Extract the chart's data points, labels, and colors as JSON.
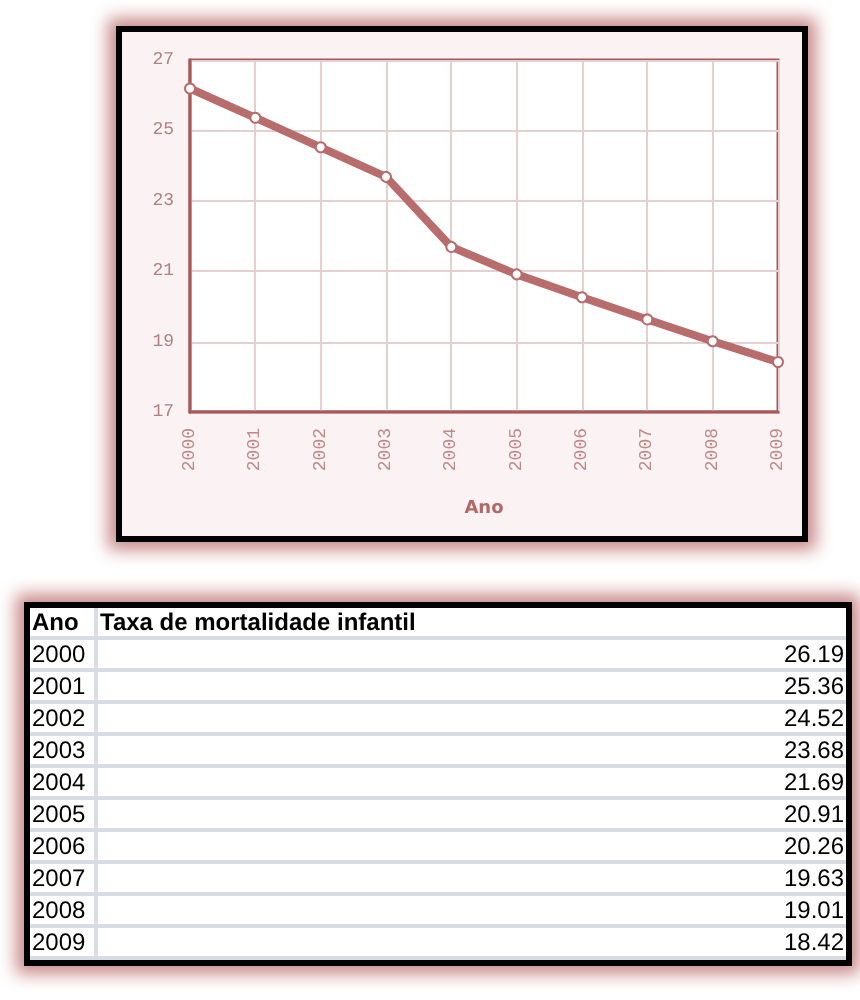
{
  "chart_data": {
    "type": "line",
    "xlabel": "Ano",
    "categories": [
      "2000",
      "2001",
      "2002",
      "2003",
      "2004",
      "2005",
      "2006",
      "2007",
      "2008",
      "2009"
    ],
    "series": [
      {
        "name": "Taxa de mortalidade infantil",
        "color": "#b86c6c",
        "values": [
          26.19,
          25.36,
          24.52,
          23.68,
          21.69,
          20.91,
          20.26,
          19.63,
          19.01,
          18.42
        ]
      }
    ],
    "ylim": [
      17,
      27
    ],
    "yticks": [
      17,
      19,
      21,
      23,
      25,
      27
    ],
    "grid": true,
    "marker": "circle",
    "line_style": "solid",
    "legend": false,
    "annotations": [
      "26.19",
      "25.36",
      "24.52",
      "23.68",
      "21.69",
      "20.91",
      "20.26",
      "19.63",
      "19.01",
      "18.42"
    ]
  }
}
